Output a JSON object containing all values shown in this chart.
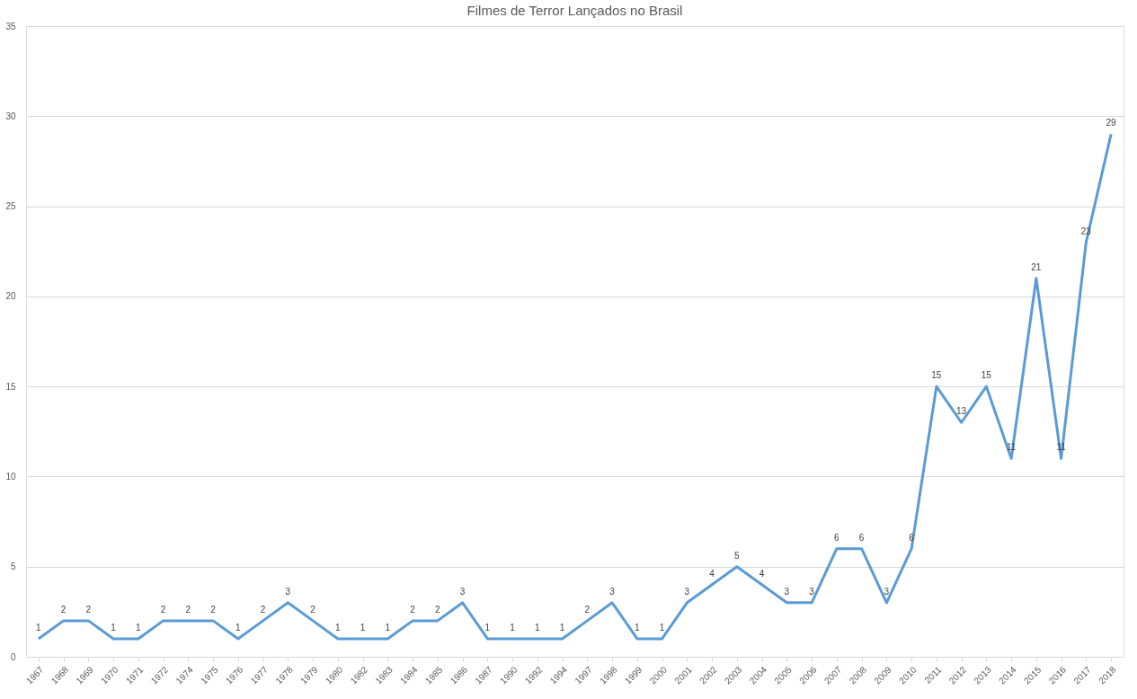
{
  "chart_data": {
    "type": "line",
    "title": "Filmes de Terror Lançados no Brasil",
    "categories": [
      "1967",
      "1968",
      "1969",
      "1970",
      "1971",
      "1972",
      "1974",
      "1975",
      "1976",
      "1977",
      "1978",
      "1979",
      "1980",
      "1982",
      "1983",
      "1984",
      "1985",
      "1986",
      "1987",
      "1990",
      "1992",
      "1994",
      "1997",
      "1998",
      "1999",
      "2000",
      "2001",
      "2002",
      "2003",
      "2004",
      "2005",
      "2006",
      "2007",
      "2008",
      "2009",
      "2010",
      "2011",
      "2012",
      "2013",
      "2014",
      "2015",
      "2016",
      "2017",
      "2018"
    ],
    "series": [
      {
        "color": "#5b9bd5",
        "values": [
          1,
          2,
          2,
          1,
          1,
          2,
          2,
          2,
          1,
          2,
          3,
          2,
          1,
          1,
          1,
          2,
          2,
          3,
          1,
          1,
          1,
          1,
          2,
          3,
          1,
          1,
          3,
          4,
          5,
          4,
          3,
          3,
          6,
          6,
          3,
          6,
          15,
          13,
          15,
          11,
          21,
          11,
          23,
          29
        ]
      }
    ],
    "ylim": [
      0,
      35
    ],
    "yticks": [
      0,
      5,
      10,
      15,
      20,
      25,
      30,
      35
    ],
    "grid": "y",
    "data_labels": true,
    "marker": "none",
    "line_style": "solid"
  }
}
